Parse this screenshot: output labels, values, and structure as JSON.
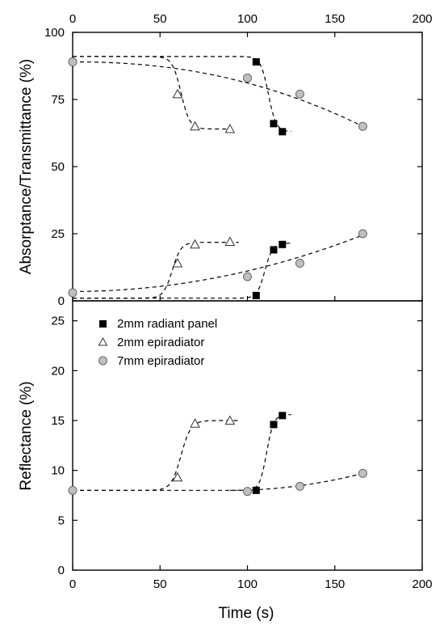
{
  "chart_data": {
    "type": "scatter",
    "xlabel": "Time (s)",
    "x_ticks": [
      "0",
      "50",
      "100",
      "150",
      "200"
    ],
    "xlim": [
      0,
      200
    ],
    "colors": {
      "radiant_panel": "#000000",
      "epiradiator_7mm": "#c0c0c0"
    },
    "panels": [
      {
        "ylabel": "Absorptance/Transmittance (%)",
        "ylim": [
          0,
          100
        ],
        "y_ticks": [
          "0",
          "25",
          "50",
          "75",
          "100"
        ],
        "top_x_ticks": [
          "0",
          "50",
          "100",
          "150",
          "200"
        ],
        "series": [
          {
            "group": "2mm radiant panel",
            "marker": "square",
            "x": [
              105,
              115,
              120
            ],
            "y": [
              89,
              66,
              63
            ]
          },
          {
            "group": "2mm epiradiator",
            "marker": "triangle",
            "x": [
              60,
              70,
              90
            ],
            "y": [
              77,
              65,
              64
            ]
          },
          {
            "group": "7mm epiradiator",
            "marker": "circle",
            "x": [
              0,
              100,
              130,
              166
            ],
            "y": [
              89,
              83,
              77,
              65
            ]
          },
          {
            "group": "2mm radiant panel",
            "marker": "square",
            "x": [
              105,
              115,
              120
            ],
            "y": [
              2,
              19,
              21
            ]
          },
          {
            "group": "2mm epiradiator",
            "marker": "triangle",
            "x": [
              60,
              70,
              90
            ],
            "y": [
              14,
              21,
              22
            ]
          },
          {
            "group": "7mm epiradiator",
            "marker": "circle",
            "x": [
              0,
              100,
              130,
              166
            ],
            "y": [
              3,
              9,
              14,
              25
            ]
          }
        ]
      },
      {
        "ylabel": "Reflectance (%)",
        "ylim": [
          0,
          27
        ],
        "y_ticks": [
          "0",
          "5",
          "10",
          "15",
          "20",
          "25"
        ],
        "series": [
          {
            "group": "2mm radiant panel",
            "marker": "square",
            "x": [
              105,
              115,
              120
            ],
            "y": [
              8.0,
              14.6,
              15.5
            ]
          },
          {
            "group": "2mm epiradiator",
            "marker": "triangle",
            "x": [
              60,
              70,
              90
            ],
            "y": [
              9.3,
              14.7,
              15.0
            ]
          },
          {
            "group": "7mm epiradiator",
            "marker": "circle",
            "x": [
              0,
              100,
              130,
              166
            ],
            "y": [
              8.0,
              7.9,
              8.4,
              9.7
            ]
          }
        ]
      }
    ],
    "legend": {
      "placement": "upper-left of lower panel",
      "entries": [
        {
          "label": "2mm radiant panel",
          "marker": "square"
        },
        {
          "label": "2mm epiradiator",
          "marker": "triangle"
        },
        {
          "label": "7mm epiradiator",
          "marker": "circle"
        }
      ]
    }
  }
}
